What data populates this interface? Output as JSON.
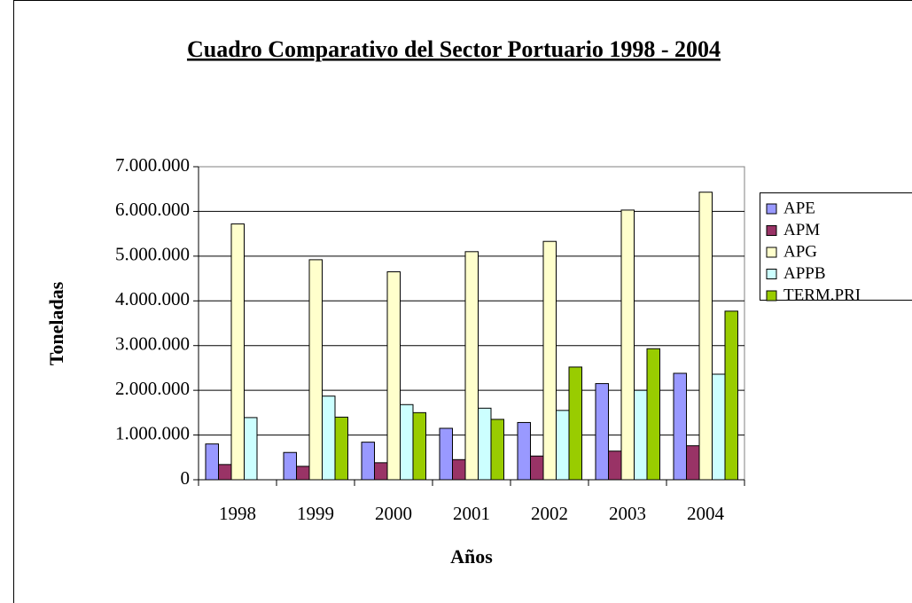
{
  "chart_data": {
    "type": "bar",
    "title": "Cuadro Comparativo del Sector Portuario  1998 - 2004",
    "x_label": "Años",
    "y_label": "Toneladas",
    "categories": [
      "1998",
      "1999",
      "2000",
      "2001",
      "2002",
      "2003",
      "2004"
    ],
    "series": [
      {
        "name": "APE",
        "color": "#9999ff",
        "values": [
          800000,
          610000,
          840000,
          1150000,
          1280000,
          2150000,
          2380000
        ]
      },
      {
        "name": "APM",
        "color": "#993366",
        "values": [
          340000,
          300000,
          380000,
          450000,
          530000,
          640000,
          760000
        ]
      },
      {
        "name": "APG",
        "color": "#ffffcc",
        "values": [
          5720000,
          4920000,
          4650000,
          5100000,
          5330000,
          6030000,
          6430000
        ]
      },
      {
        "name": "APPB",
        "color": "#ccffff",
        "values": [
          1390000,
          1870000,
          1680000,
          1600000,
          1550000,
          2000000,
          2360000
        ]
      },
      {
        "name": "TERM.PRI",
        "color": "#99cc00",
        "values": [
          null,
          1400000,
          1500000,
          1350000,
          2520000,
          2930000,
          3770000
        ]
      }
    ],
    "ylim": [
      0,
      7000000
    ],
    "yticks": [
      0,
      {
        "value": 1000000,
        "label": "1.000.000"
      },
      {
        "value": 2000000,
        "label": "2.000.000"
      },
      {
        "value": 3000000,
        "label": "3.000.000"
      },
      {
        "value": 4000000,
        "label": "4.000.000"
      },
      {
        "value": 5000000,
        "label": "5.000.000"
      },
      {
        "value": 6000000,
        "label": "6.000.000"
      },
      {
        "value": 7000000,
        "label": "7.000.000"
      }
    ],
    "grid": true,
    "legend": "right"
  }
}
